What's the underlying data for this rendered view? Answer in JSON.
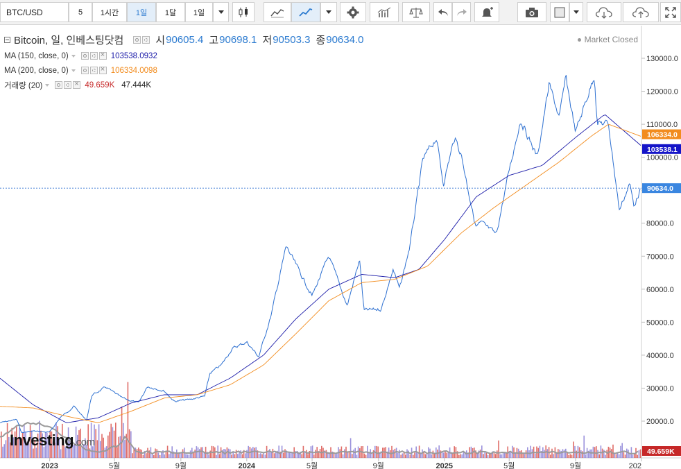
{
  "toolbar": {
    "symbol": "BTC/USD",
    "intervals": [
      "5",
      "1시간",
      "1일",
      "1달",
      "1일"
    ],
    "active_interval": 2,
    "icons": [
      "dropdown-icon",
      "candlestick-icon",
      "area-chart-icon",
      "line-chart-icon",
      "dropdown-icon",
      "settings-icon",
      "indicators-icon",
      "compare-icon",
      "undo-icon",
      "redo-icon",
      "alert-icon",
      "camera-icon",
      "color-box-icon",
      "dropdown-icon",
      "cloud-download-icon",
      "cloud-upload-icon",
      "fullscreen-icon"
    ]
  },
  "legend": {
    "title": "Bitcoin, 일, 인베스팅닷컴",
    "open_label": "시",
    "open": "90605.4",
    "high_label": "고",
    "high": "90698.1",
    "low_label": "저",
    "low": "90503.3",
    "close_label": "종",
    "close": "90634.0",
    "ma150_label": "MA (150, close, 0)",
    "ma150_value": "103538.0932",
    "ma200_label": "MA (200, close, 0)",
    "ma200_value": "106334.0098",
    "volume_label": "거래량 (20)",
    "volume_value": "49.659K",
    "volume_ma_value": "47.444K"
  },
  "market_status": "Market Closed",
  "watermark": {
    "brand": "Investing",
    "suffix": ".com"
  },
  "colors": {
    "price": "#2c6fd0",
    "ma150": "#1a1aa8",
    "ma200": "#f28c1e",
    "volume_up": "#8a7fd6",
    "volume_down": "#d9534f",
    "volume_ma": "#9a9a9a",
    "badge_price": "#3a86e0",
    "badge_ma150": "#1414c8",
    "badge_ma200": "#f28c1e",
    "badge_volume": "#c62828"
  },
  "chart_data": {
    "type": "line",
    "title": "Bitcoin, 일, 인베스팅닷컴",
    "x_ticks": [
      "2023",
      "5월",
      "9월",
      "2024",
      "5월",
      "9월",
      "2025",
      "5월",
      "9월",
      "202"
    ],
    "y_ticks": [
      "20000.0",
      "30000.0",
      "40000.0",
      "50000.0",
      "60000.0",
      "70000.0",
      "80000.0",
      "90000.0",
      "100000.0",
      "110000.0",
      "120000.0",
      "130000.0"
    ],
    "ylim": [
      14000,
      135000
    ],
    "x_range": [
      "2022-10",
      "2026-01"
    ],
    "series": [
      {
        "name": "Bitcoin",
        "role": "price",
        "points": [
          [
            "2022-10-01",
            19500
          ],
          [
            "2022-11-01",
            20500
          ],
          [
            "2022-11-10",
            16500
          ],
          [
            "2022-12-01",
            17000
          ],
          [
            "2023-01-01",
            16600
          ],
          [
            "2023-01-20",
            21000
          ],
          [
            "2023-02-15",
            24500
          ],
          [
            "2023-03-10",
            20200
          ],
          [
            "2023-03-20",
            27800
          ],
          [
            "2023-04-15",
            30300
          ],
          [
            "2023-05-15",
            27000
          ],
          [
            "2023-06-15",
            25500
          ],
          [
            "2023-07-01",
            30500
          ],
          [
            "2023-08-01",
            29200
          ],
          [
            "2023-08-20",
            26000
          ],
          [
            "2023-09-15",
            26500
          ],
          [
            "2023-10-15",
            27500
          ],
          [
            "2023-10-25",
            34500
          ],
          [
            "2023-11-15",
            37000
          ],
          [
            "2023-12-05",
            42000
          ],
          [
            "2024-01-01",
            44000
          ],
          [
            "2024-01-23",
            39500
          ],
          [
            "2024-02-15",
            52000
          ],
          [
            "2024-03-14",
            73000
          ],
          [
            "2024-04-15",
            63000
          ],
          [
            "2024-05-01",
            58000
          ],
          [
            "2024-06-01",
            70000
          ],
          [
            "2024-07-05",
            55000
          ],
          [
            "2024-07-28",
            69000
          ],
          [
            "2024-08-05",
            53500
          ],
          [
            "2024-09-06",
            54000
          ],
          [
            "2024-09-28",
            66000
          ],
          [
            "2024-10-10",
            60000
          ],
          [
            "2024-10-29",
            73000
          ],
          [
            "2024-11-12",
            88000
          ],
          [
            "2024-11-22",
            99000
          ],
          [
            "2024-12-17",
            106000
          ],
          [
            "2024-12-30",
            92000
          ],
          [
            "2025-01-20",
            106000
          ],
          [
            "2025-02-01",
            101000
          ],
          [
            "2025-02-28",
            79000
          ],
          [
            "2025-03-10",
            80000
          ],
          [
            "2025-04-07",
            76500
          ],
          [
            "2025-05-01",
            96000
          ],
          [
            "2025-05-22",
            111500
          ],
          [
            "2025-06-22",
            100000
          ],
          [
            "2025-07-14",
            122000
          ],
          [
            "2025-08-02",
            112000
          ],
          [
            "2025-08-14",
            124000
          ],
          [
            "2025-09-01",
            107500
          ],
          [
            "2025-10-06",
            125000
          ],
          [
            "2025-10-11",
            110500
          ],
          [
            "2025-11-01",
            110000
          ],
          [
            "2025-11-21",
            84000
          ],
          [
            "2025-12-10",
            92000
          ],
          [
            "2025-12-18",
            85500
          ],
          [
            "2025-12-31",
            90634
          ]
        ]
      },
      {
        "name": "MA (150, close, 0)",
        "role": "ma150",
        "points": [
          [
            "2022-10-01",
            33000
          ],
          [
            "2022-12-01",
            25000
          ],
          [
            "2023-02-01",
            19500
          ],
          [
            "2023-04-01",
            21000
          ],
          [
            "2023-06-01",
            25500
          ],
          [
            "2023-08-01",
            28000
          ],
          [
            "2023-10-01",
            28000
          ],
          [
            "2023-12-01",
            33000
          ],
          [
            "2024-02-01",
            40000
          ],
          [
            "2024-04-01",
            51000
          ],
          [
            "2024-06-01",
            60000
          ],
          [
            "2024-08-01",
            64500
          ],
          [
            "2024-10-01",
            63500
          ],
          [
            "2024-11-15",
            66000
          ],
          [
            "2025-01-01",
            75000
          ],
          [
            "2025-03-01",
            88000
          ],
          [
            "2025-05-01",
            94500
          ],
          [
            "2025-07-01",
            97500
          ],
          [
            "2025-09-01",
            106000
          ],
          [
            "2025-10-25",
            113000
          ],
          [
            "2025-12-31",
            103538
          ]
        ]
      },
      {
        "name": "MA (200, close, 0)",
        "role": "ma200",
        "points": [
          [
            "2022-10-01",
            24500
          ],
          [
            "2022-12-01",
            24000
          ],
          [
            "2023-02-01",
            21500
          ],
          [
            "2023-04-01",
            19500
          ],
          [
            "2023-06-01",
            23000
          ],
          [
            "2023-08-01",
            27000
          ],
          [
            "2023-10-01",
            28000
          ],
          [
            "2023-12-01",
            31000
          ],
          [
            "2024-02-01",
            37000
          ],
          [
            "2024-04-01",
            46500
          ],
          [
            "2024-06-01",
            56500
          ],
          [
            "2024-08-01",
            62000
          ],
          [
            "2024-10-01",
            63000
          ],
          [
            "2024-12-01",
            67000
          ],
          [
            "2025-02-01",
            77000
          ],
          [
            "2025-04-01",
            84500
          ],
          [
            "2025-06-01",
            91500
          ],
          [
            "2025-08-01",
            98500
          ],
          [
            "2025-10-01",
            106500
          ],
          [
            "2025-11-01",
            110000
          ],
          [
            "2025-12-31",
            106334
          ]
        ]
      }
    ],
    "price_line": 90634.0,
    "badges": [
      "106334.0",
      "103538.1",
      "90634.0",
      "49.659K"
    ]
  }
}
